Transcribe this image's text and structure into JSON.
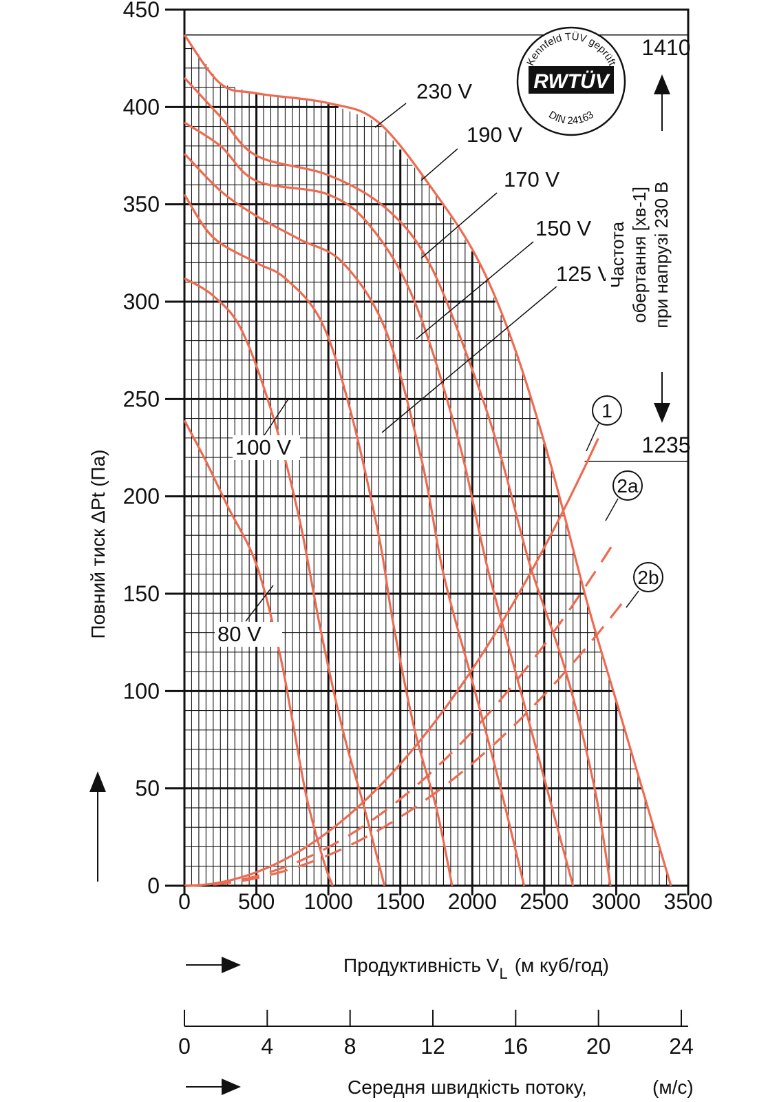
{
  "chart_data": {
    "type": "line",
    "ylabel": "Повний тиск  ΔPt (Па)",
    "xlabel": "Продуктивність  V",
    "xlabel_sub": "L",
    "xlabel_unit": "(м куб/год)",
    "x2label": "Середня швидкість потоку,",
    "x2label_unit": "(м/с)",
    "xlim": [
      0,
      3500
    ],
    "ylim": [
      0,
      450
    ],
    "xticks": [
      "0",
      "500",
      "1000",
      "1500",
      "2000",
      "2500",
      "3000",
      "3500"
    ],
    "yticks": [
      "0",
      "50",
      "100",
      "150",
      "200",
      "250",
      "300",
      "350",
      "400",
      "450"
    ],
    "x2ticks": [
      "0",
      "4",
      "8",
      "12",
      "16",
      "20",
      "24"
    ],
    "side_label_line1": "Частота",
    "side_label_line2": "обертання [хв-1]",
    "side_label_line3": "при напрузі 230 В",
    "rpm_high": "1410",
    "rpm_low": "1235",
    "rpm_high_pressure": 437,
    "rpm_low_pressure": 218,
    "badge": {
      "top": "Kennfeld TÜV geprüft",
      "mark": "RWTÜV",
      "bottom": "DIN 24163"
    },
    "series": [
      {
        "name": "230 V",
        "points": [
          [
            0,
            437
          ],
          [
            250,
            412
          ],
          [
            500,
            407
          ],
          [
            1000,
            402
          ],
          [
            1350,
            392
          ],
          [
            1750,
            355
          ],
          [
            2050,
            320
          ],
          [
            2300,
            275
          ],
          [
            2550,
            215
          ],
          [
            2800,
            145
          ],
          [
            3000,
            95
          ],
          [
            3200,
            45
          ],
          [
            3380,
            0
          ]
        ]
      },
      {
        "name": "190 V",
        "points": [
          [
            0,
            415
          ],
          [
            250,
            395
          ],
          [
            500,
            375
          ],
          [
            1000,
            365
          ],
          [
            1400,
            348
          ],
          [
            1700,
            320
          ],
          [
            2000,
            265
          ],
          [
            2200,
            220
          ],
          [
            2400,
            165
          ],
          [
            2650,
            110
          ],
          [
            2850,
            50
          ],
          [
            2960,
            0
          ]
        ]
      },
      {
        "name": "170 V",
        "points": [
          [
            0,
            392
          ],
          [
            250,
            380
          ],
          [
            500,
            362
          ],
          [
            1000,
            355
          ],
          [
            1300,
            338
          ],
          [
            1600,
            300
          ],
          [
            1900,
            230
          ],
          [
            2100,
            165
          ],
          [
            2300,
            110
          ],
          [
            2500,
            55
          ],
          [
            2700,
            0
          ]
        ]
      },
      {
        "name": "150 V",
        "points": [
          [
            0,
            376
          ],
          [
            250,
            357
          ],
          [
            500,
            344
          ],
          [
            800,
            332
          ],
          [
            1100,
            320
          ],
          [
            1400,
            285
          ],
          [
            1650,
            218
          ],
          [
            1800,
            160
          ],
          [
            2000,
            105
          ],
          [
            2180,
            55
          ],
          [
            2360,
            0
          ]
        ]
      },
      {
        "name": "125 V",
        "points": [
          [
            0,
            355
          ],
          [
            200,
            333
          ],
          [
            500,
            320
          ],
          [
            700,
            312
          ],
          [
            950,
            290
          ],
          [
            1150,
            245
          ],
          [
            1350,
            180
          ],
          [
            1450,
            135
          ],
          [
            1600,
            80
          ],
          [
            1750,
            40
          ],
          [
            1860,
            0
          ]
        ]
      },
      {
        "name": "100 V",
        "points": [
          [
            0,
            312
          ],
          [
            200,
            303
          ],
          [
            400,
            285
          ],
          [
            620,
            240
          ],
          [
            800,
            188
          ],
          [
            950,
            130
          ],
          [
            1100,
            80
          ],
          [
            1250,
            40
          ],
          [
            1390,
            0
          ]
        ]
      },
      {
        "name": "80 V",
        "points": [
          [
            0,
            239
          ],
          [
            150,
            218
          ],
          [
            300,
            195
          ],
          [
            500,
            165
          ],
          [
            660,
            120
          ],
          [
            750,
            85
          ],
          [
            850,
            45
          ],
          [
            970,
            12
          ],
          [
            1030,
            0
          ]
        ]
      }
    ],
    "system_curves": [
      {
        "name": "1",
        "coef": 2.78e-05,
        "x_end": 2900,
        "dashed": false
      },
      {
        "name": "2a",
        "coef": 1.98e-05,
        "x_end": 3000,
        "dashed": true
      },
      {
        "name": "2b",
        "coef": 1.57e-05,
        "x_end": 3050,
        "dashed": true
      }
    ]
  }
}
